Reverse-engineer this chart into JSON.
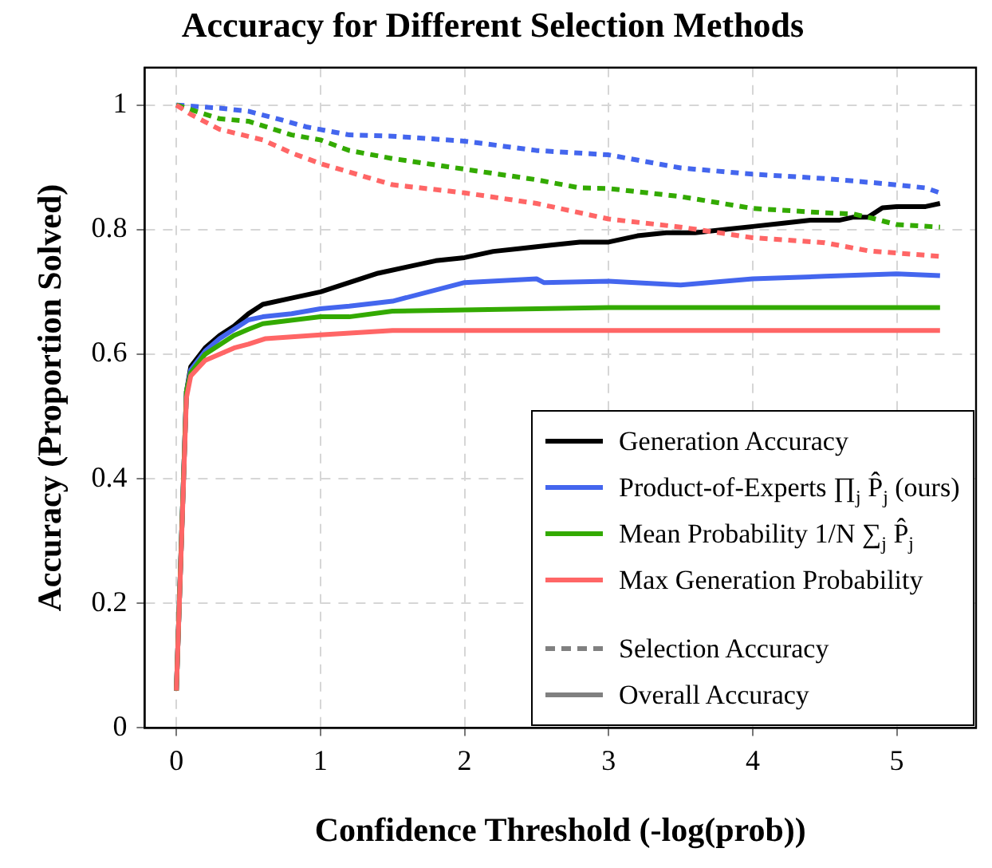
{
  "chart_data": {
    "type": "line",
    "title": "Accuracy for Different Selection Methods",
    "xlabel": "Confidence Threshold (-log(prob))",
    "ylabel": "Accuracy (Proportion Solved)",
    "xlim": [
      -0.22,
      5.55
    ],
    "ylim": [
      0,
      1.06
    ],
    "xticks": [
      0,
      1,
      2,
      3,
      4,
      5
    ],
    "yticks": [
      0,
      0.2,
      0.4,
      0.6,
      0.8,
      1
    ],
    "grid": true,
    "legend": "bottom right",
    "marker": "none",
    "series": [
      {
        "name": "Generation Accuracy",
        "color": "#000000",
        "line_style": "solid",
        "x": [
          0,
          0.07,
          0.1,
          0.2,
          0.3,
          0.4,
          0.5,
          0.6,
          0.8,
          1.0,
          1.2,
          1.4,
          1.6,
          1.8,
          2.0,
          2.2,
          2.4,
          2.6,
          2.8,
          3.0,
          3.2,
          3.4,
          3.6,
          3.8,
          4.0,
          4.2,
          4.4,
          4.6,
          4.7,
          4.8,
          4.9,
          5.0,
          5.2,
          5.3
        ],
        "values": [
          0.06,
          0.54,
          0.58,
          0.61,
          0.63,
          0.645,
          0.665,
          0.68,
          0.69,
          0.7,
          0.715,
          0.73,
          0.74,
          0.75,
          0.755,
          0.765,
          0.77,
          0.775,
          0.78,
          0.78,
          0.79,
          0.795,
          0.795,
          0.8,
          0.805,
          0.81,
          0.815,
          0.815,
          0.82,
          0.82,
          0.835,
          0.837,
          0.837,
          0.842
        ]
      },
      {
        "name": "Product-of-Experts ∏$_{j}$ P̂$_{j}$ (ours)",
        "color": "#4466ee",
        "line_style": "solid",
        "x": [
          0,
          0.07,
          0.1,
          0.2,
          0.3,
          0.4,
          0.5,
          0.6,
          0.8,
          1.0,
          1.2,
          1.5,
          2.0,
          2.5,
          2.55,
          3.0,
          3.5,
          4.0,
          4.5,
          5.0,
          5.3
        ],
        "values": [
          0.06,
          0.54,
          0.575,
          0.605,
          0.625,
          0.64,
          0.655,
          0.66,
          0.665,
          0.673,
          0.677,
          0.685,
          0.715,
          0.721,
          0.715,
          0.717,
          0.711,
          0.721,
          0.725,
          0.729,
          0.726
        ]
      },
      {
        "name": "Mean Probability 1/N ∑$_{j}$ P̂$_{j}$",
        "color": "#33aa00",
        "line_style": "solid",
        "x": [
          0,
          0.07,
          0.1,
          0.2,
          0.3,
          0.4,
          0.5,
          0.6,
          1.0,
          1.2,
          1.5,
          2.0,
          2.5,
          3.0,
          4.0,
          5.0,
          5.3
        ],
        "values": [
          0.06,
          0.54,
          0.57,
          0.6,
          0.615,
          0.63,
          0.64,
          0.649,
          0.66,
          0.66,
          0.669,
          0.671,
          0.673,
          0.675,
          0.675,
          0.675,
          0.675
        ]
      },
      {
        "name": "Max Generation Probability",
        "color": "#ff6666",
        "line_style": "solid",
        "x": [
          0,
          0.07,
          0.1,
          0.2,
          0.3,
          0.4,
          0.5,
          0.62,
          1.0,
          1.5,
          2.0,
          3.0,
          4.0,
          5.0,
          5.3
        ],
        "values": [
          0.06,
          0.53,
          0.565,
          0.59,
          0.6,
          0.61,
          0.616,
          0.625,
          0.631,
          0.638,
          0.638,
          0.638,
          0.638,
          0.638,
          0.638
        ]
      },
      {
        "color": "#4466ee",
        "line_style": "dashed",
        "x": [
          0,
          0.3,
          0.5,
          0.7,
          0.9,
          1.2,
          1.5,
          2.0,
          2.5,
          3.0,
          3.5,
          4.0,
          4.5,
          4.9,
          5.2,
          5.3
        ],
        "values": [
          1.0,
          0.995,
          0.99,
          0.978,
          0.965,
          0.952,
          0.95,
          0.942,
          0.927,
          0.92,
          0.899,
          0.889,
          0.882,
          0.874,
          0.867,
          0.859
        ]
      },
      {
        "color": "#33aa00",
        "line_style": "dashed",
        "x": [
          0,
          0.3,
          0.5,
          0.8,
          1.0,
          1.2,
          1.5,
          2.0,
          2.5,
          2.8,
          3.0,
          3.5,
          4.0,
          4.5,
          4.7,
          4.85,
          5.0,
          5.3
        ],
        "values": [
          1.0,
          0.978,
          0.974,
          0.952,
          0.944,
          0.927,
          0.914,
          0.897,
          0.88,
          0.867,
          0.866,
          0.853,
          0.834,
          0.827,
          0.825,
          0.817,
          0.808,
          0.804
        ]
      },
      {
        "color": "#ff6666",
        "line_style": "dashed",
        "x": [
          0,
          0.1,
          0.3,
          0.6,
          0.8,
          1.0,
          1.5,
          2.0,
          2.5,
          3.0,
          3.5,
          4.0,
          4.5,
          4.8,
          5.3
        ],
        "values": [
          1.0,
          0.985,
          0.961,
          0.944,
          0.923,
          0.906,
          0.872,
          0.859,
          0.842,
          0.817,
          0.804,
          0.787,
          0.779,
          0.766,
          0.757
        ]
      },
      {
        "name": "Selection Accuracy",
        "color": "#808080",
        "line_style": "dashed"
      },
      {
        "name": "Overall Accuracy",
        "color": "#808080",
        "line_style": "solid"
      }
    ]
  }
}
